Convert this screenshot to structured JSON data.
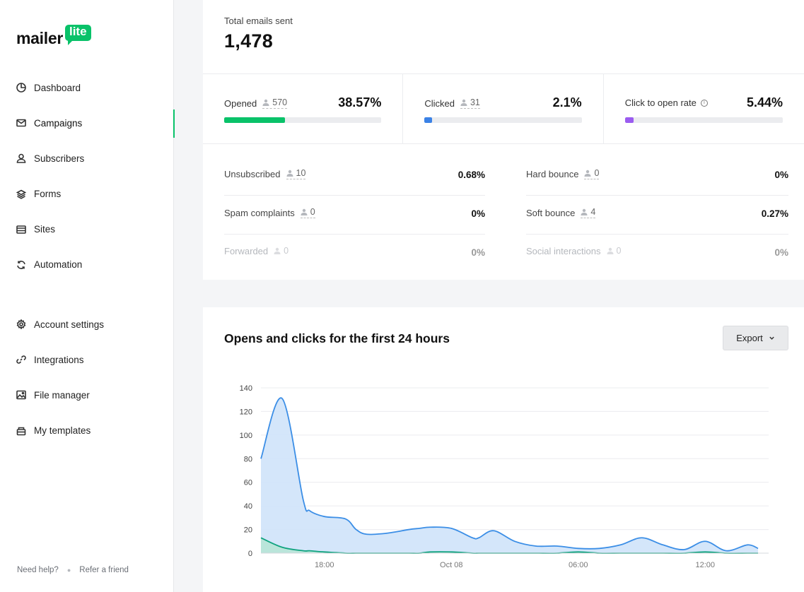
{
  "brand": {
    "name": "mailer",
    "badge": "lite",
    "accent": "#09c269"
  },
  "sidebar": {
    "main": [
      {
        "label": "Dashboard",
        "icon": "dashboard-icon"
      },
      {
        "label": "Campaigns",
        "icon": "mail-icon",
        "active": true
      },
      {
        "label": "Subscribers",
        "icon": "user-icon"
      },
      {
        "label": "Forms",
        "icon": "layers-icon"
      },
      {
        "label": "Sites",
        "icon": "browser-icon"
      },
      {
        "label": "Automation",
        "icon": "refresh-icon"
      }
    ],
    "settings": [
      {
        "label": "Account settings",
        "icon": "gear-icon"
      },
      {
        "label": "Integrations",
        "icon": "link-icon"
      },
      {
        "label": "File manager",
        "icon": "image-icon"
      },
      {
        "label": "My templates",
        "icon": "template-icon"
      }
    ],
    "footer": {
      "help": "Need help?",
      "refer": "Refer a friend"
    }
  },
  "stats": {
    "total_label": "Total emails sent",
    "total_value": "1,478",
    "rates": [
      {
        "label": "Opened",
        "count": "570",
        "percent": "38.57%",
        "fill": 0.3857,
        "color": "#09c269"
      },
      {
        "label": "Clicked",
        "count": "31",
        "percent": "2.1%",
        "fill": 0.021,
        "color": "#3b82e6"
      },
      {
        "label": "Click to open rate",
        "percent": "5.44%",
        "fill": 0.0544,
        "color": "#9b5cf0"
      }
    ],
    "metrics_left": [
      {
        "label": "Unsubscribed",
        "count": "10",
        "value": "0.68%"
      },
      {
        "label": "Spam complaints",
        "count": "0",
        "value": "0%"
      },
      {
        "label": "Forwarded",
        "count": "0",
        "value": "0%",
        "muted": true
      }
    ],
    "metrics_right": [
      {
        "label": "Hard bounce",
        "count": "0",
        "value": "0%"
      },
      {
        "label": "Soft bounce",
        "count": "4",
        "value": "0.27%"
      },
      {
        "label": "Social interactions",
        "count": "0",
        "value": "0%",
        "muted": true
      }
    ]
  },
  "chart_section": {
    "title": "Opens and clicks for the first 24 hours",
    "export_label": "Export"
  },
  "chart_data": {
    "type": "area",
    "title": "Opens and clicks for the first 24 hours",
    "xlabel": "",
    "ylabel": "",
    "ylim": [
      0,
      140
    ],
    "yticks": [
      0,
      20,
      40,
      60,
      80,
      100,
      120,
      140
    ],
    "xtick_labels": [
      {
        "label": "18:00",
        "hour": 3
      },
      {
        "label": "Oct 08",
        "hour": 9
      },
      {
        "label": "06:00",
        "hour": 15
      },
      {
        "label": "12:00",
        "hour": 21
      }
    ],
    "x_hours": [
      0,
      1,
      2,
      2.3,
      3,
      4,
      4.5,
      5,
      6,
      7,
      7.5,
      8,
      9,
      10,
      10.3,
      11,
      12,
      13,
      14,
      15,
      16,
      17,
      18,
      19,
      20,
      21,
      22,
      23,
      23.5
    ],
    "series": [
      {
        "name": "Opens",
        "color": "#3b8ee6",
        "fill": "#cfe3fa",
        "values": [
          80,
          131,
          45,
          36,
          31,
          29,
          20,
          16,
          17,
          20,
          21,
          22,
          21,
          13,
          13,
          19,
          10,
          6,
          6,
          4,
          4,
          7,
          13,
          7,
          3,
          10,
          2,
          7,
          4
        ]
      },
      {
        "name": "Clicks",
        "color": "#10a37f",
        "fill": "#b7e4d6",
        "values": [
          13,
          5,
          2,
          2,
          1,
          0,
          0,
          0,
          0,
          0,
          0,
          1,
          1,
          0,
          0,
          0,
          0,
          0,
          0,
          1,
          0,
          0,
          0,
          0,
          0,
          1,
          0,
          0,
          0
        ]
      }
    ]
  }
}
